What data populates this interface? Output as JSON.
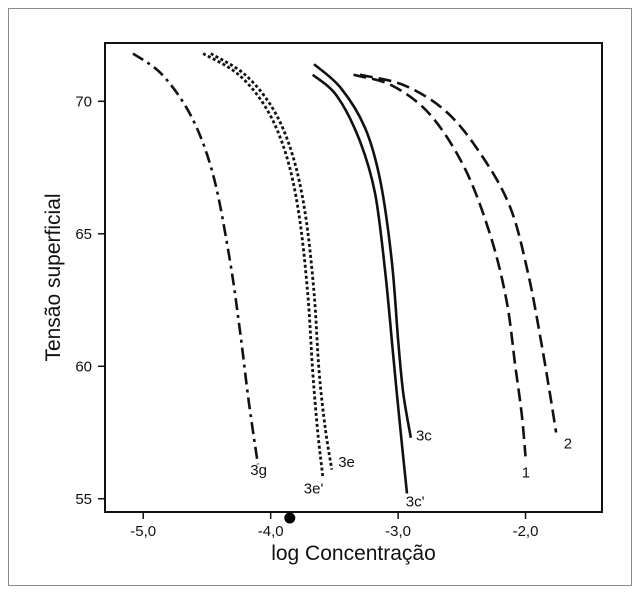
{
  "chart_data": {
    "type": "line",
    "xlabel": "log Concentração",
    "ylabel": "Tensão superficial",
    "xlim": [
      -5.3,
      -1.4
    ],
    "ylim": [
      54.5,
      72.2
    ],
    "xticks": [
      -5.0,
      -4.0,
      -3.0,
      -2.0
    ],
    "xtick_labels": [
      "-5,0",
      "-4,0",
      "-3,0",
      "-2,0"
    ],
    "yticks": [
      55,
      60,
      65,
      70
    ],
    "ytick_labels": [
      "55",
      "60",
      "65",
      "70"
    ],
    "grid": false,
    "legend": "none",
    "marker": {
      "x": -3.85,
      "y": 54.5,
      "shape": "filled-circle"
    },
    "series": [
      {
        "name": "3g",
        "style": "dash-dot",
        "points": [
          [
            -5.08,
            71.8
          ],
          [
            -4.85,
            71.0
          ],
          [
            -4.62,
            69.4
          ],
          [
            -4.45,
            67.2
          ],
          [
            -4.32,
            64.0
          ],
          [
            -4.24,
            61.3
          ],
          [
            -4.17,
            58.6
          ],
          [
            -4.1,
            56.3
          ]
        ],
        "label_at": [
          -4.16,
          55.9
        ]
      },
      {
        "name": "3e'",
        "style": "dotted",
        "points": [
          [
            -4.53,
            71.8
          ],
          [
            -4.25,
            71.0
          ],
          [
            -4.03,
            69.7
          ],
          [
            -3.88,
            68.0
          ],
          [
            -3.78,
            65.8
          ],
          [
            -3.71,
            62.8
          ],
          [
            -3.67,
            59.8
          ],
          [
            -3.63,
            57.5
          ],
          [
            -3.59,
            55.8
          ]
        ],
        "label_at": [
          -3.74,
          55.2
        ]
      },
      {
        "name": "3e",
        "style": "dotted",
        "points": [
          [
            -4.47,
            71.8
          ],
          [
            -4.2,
            71.0
          ],
          [
            -3.98,
            69.7
          ],
          [
            -3.83,
            68.0
          ],
          [
            -3.73,
            65.8
          ],
          [
            -3.66,
            62.8
          ],
          [
            -3.62,
            59.8
          ],
          [
            -3.57,
            57.6
          ],
          [
            -3.52,
            56.1
          ]
        ],
        "label_at": [
          -3.47,
          56.2
        ]
      },
      {
        "name": "3c",
        "style": "solid",
        "points": [
          [
            -3.66,
            71.4
          ],
          [
            -3.45,
            70.5
          ],
          [
            -3.26,
            69.0
          ],
          [
            -3.14,
            67.0
          ],
          [
            -3.05,
            64.0
          ],
          [
            -3.0,
            61.0
          ],
          [
            -2.96,
            59.0
          ],
          [
            -2.9,
            57.3
          ]
        ],
        "label_at": [
          -2.86,
          57.2
        ]
      },
      {
        "name": "3c'",
        "style": "solid",
        "points": [
          [
            -3.67,
            71.0
          ],
          [
            -3.48,
            70.2
          ],
          [
            -3.3,
            68.5
          ],
          [
            -3.18,
            66.5
          ],
          [
            -3.1,
            63.5
          ],
          [
            -3.04,
            60.5
          ],
          [
            -2.99,
            58.0
          ],
          [
            -2.93,
            55.2
          ]
        ],
        "label_at": [
          -2.94,
          54.7
        ]
      },
      {
        "name": "1",
        "style": "dashed",
        "points": [
          [
            -3.35,
            71.0
          ],
          [
            -3.05,
            70.6
          ],
          [
            -2.75,
            69.5
          ],
          [
            -2.48,
            67.5
          ],
          [
            -2.28,
            65.0
          ],
          [
            -2.15,
            62.5
          ],
          [
            -2.08,
            60.0
          ],
          [
            -2.03,
            58.2
          ],
          [
            -2.0,
            56.6
          ]
        ],
        "label_at": [
          -2.03,
          55.8
        ]
      },
      {
        "name": "2",
        "style": "dashed",
        "points": [
          [
            -3.3,
            71.0
          ],
          [
            -2.95,
            70.6
          ],
          [
            -2.62,
            69.6
          ],
          [
            -2.35,
            68.0
          ],
          [
            -2.12,
            66.0
          ],
          [
            -1.98,
            63.5
          ],
          [
            -1.88,
            61.0
          ],
          [
            -1.81,
            59.0
          ],
          [
            -1.76,
            57.5
          ]
        ],
        "label_at": [
          -1.7,
          56.9
        ]
      }
    ]
  }
}
